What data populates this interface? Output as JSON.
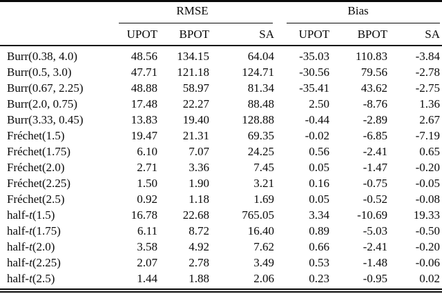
{
  "table": {
    "group_headers": [
      {
        "label": "RMSE"
      },
      {
        "label": "Bias"
      }
    ],
    "sub_headers": [
      "UPOT",
      "BPOT",
      "SA",
      "UPOT",
      "BPOT",
      "SA"
    ],
    "rows": [
      {
        "label_pre": "Burr(0.38, 4.0)",
        "label_it": "",
        "label_post": "",
        "values": [
          "48.56",
          "134.15",
          "64.04",
          "-35.03",
          "110.83",
          "-3.84"
        ]
      },
      {
        "label_pre": "Burr(0.5, 3.0)",
        "label_it": "",
        "label_post": "",
        "values": [
          "47.71",
          "121.18",
          "124.71",
          "-30.56",
          "79.56",
          "-2.78"
        ]
      },
      {
        "label_pre": "Burr(0.67, 2.25)",
        "label_it": "",
        "label_post": "",
        "values": [
          "48.88",
          "58.97",
          "81.34",
          "-35.41",
          "43.62",
          "-2.75"
        ]
      },
      {
        "label_pre": "Burr(2.0, 0.75)",
        "label_it": "",
        "label_post": "",
        "values": [
          "17.48",
          "22.27",
          "88.48",
          "2.50",
          "-8.76",
          "1.36"
        ]
      },
      {
        "label_pre": "Burr(3.33, 0.45)",
        "label_it": "",
        "label_post": "",
        "values": [
          "13.83",
          "19.40",
          "128.88",
          "-0.44",
          "-2.89",
          "2.67"
        ]
      },
      {
        "label_pre": "Fréchet(1.5)",
        "label_it": "",
        "label_post": "",
        "values": [
          "19.47",
          "21.31",
          "69.35",
          "-0.02",
          "-6.85",
          "-7.19"
        ]
      },
      {
        "label_pre": "Fréchet(1.75)",
        "label_it": "",
        "label_post": "",
        "values": [
          "6.10",
          "7.07",
          "24.25",
          "0.56",
          "-2.41",
          "0.65"
        ]
      },
      {
        "label_pre": "Fréchet(2.0)",
        "label_it": "",
        "label_post": "",
        "values": [
          "2.71",
          "3.36",
          "7.45",
          "0.05",
          "-1.47",
          "-0.20"
        ]
      },
      {
        "label_pre": "Fréchet(2.25)",
        "label_it": "",
        "label_post": "",
        "values": [
          "1.50",
          "1.90",
          "3.21",
          "0.16",
          "-0.75",
          "-0.05"
        ]
      },
      {
        "label_pre": "Fréchet(2.5)",
        "label_it": "",
        "label_post": "",
        "values": [
          "0.92",
          "1.18",
          "1.69",
          "0.05",
          "-0.52",
          "-0.08"
        ]
      },
      {
        "label_pre": "half-",
        "label_it": "t",
        "label_post": "(1.5)",
        "values": [
          "16.78",
          "22.68",
          "765.05",
          "3.34",
          "-10.69",
          "19.33"
        ]
      },
      {
        "label_pre": "half-",
        "label_it": "t",
        "label_post": "(1.75)",
        "values": [
          "6.11",
          "8.72",
          "16.40",
          "0.89",
          "-5.03",
          "-0.50"
        ]
      },
      {
        "label_pre": "half-",
        "label_it": "t",
        "label_post": "(2.0)",
        "values": [
          "3.58",
          "4.92",
          "7.62",
          "0.66",
          "-2.41",
          "-0.20"
        ]
      },
      {
        "label_pre": "half-",
        "label_it": "t",
        "label_post": "(2.25)",
        "values": [
          "2.07",
          "2.78",
          "3.49",
          "0.53",
          "-1.48",
          "-0.06"
        ]
      },
      {
        "label_pre": "half-",
        "label_it": "t",
        "label_post": "(2.5)",
        "values": [
          "1.44",
          "1.88",
          "2.06",
          "0.23",
          "-0.95",
          "0.02"
        ]
      }
    ]
  },
  "colors": {
    "text": "#0a0a0a",
    "rule": "#0a0a0a",
    "background": "#ffffff"
  }
}
